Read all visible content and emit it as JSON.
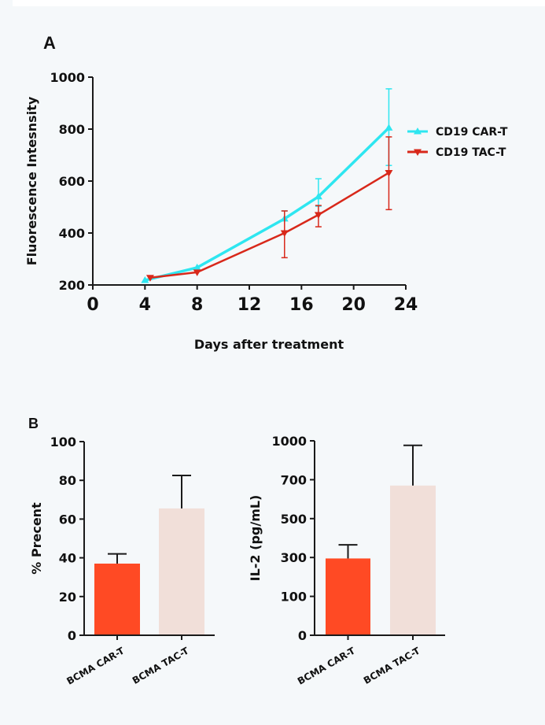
{
  "panels": {
    "a_label": "A",
    "b_label": "B"
  },
  "chart_data": [
    {
      "type": "line",
      "panel": "A",
      "title": "",
      "xlabel": "Days after treatment",
      "ylabel": "Fluorescence Intesnsity",
      "xlim": [
        0,
        24
      ],
      "ylim": [
        200,
        1000
      ],
      "x_ticks": [
        0,
        4,
        8,
        12,
        16,
        20,
        24
      ],
      "y_ticks": [
        200,
        400,
        600,
        800,
        1000
      ],
      "grid": false,
      "legend_position": "right",
      "series": [
        {
          "name": "CD19 CAR-T",
          "color": "#2ee6f0",
          "marker": "triangle-up",
          "x": [
            4,
            8,
            14.7,
            17.3,
            22.7
          ],
          "y": [
            218,
            267,
            455,
            540,
            805
          ],
          "error_low": [
            null,
            null,
            null,
            503,
            660
          ],
          "error_high": [
            null,
            null,
            485,
            609,
            955
          ]
        },
        {
          "name": "CD19 TAC-T",
          "color": "#d8281a",
          "marker": "triangle-down",
          "x": [
            4.4,
            8,
            14.7,
            17.3,
            22.7
          ],
          "y": [
            228,
            249,
            400,
            470,
            632
          ],
          "error_low": [
            null,
            null,
            305,
            424,
            490
          ],
          "error_high": [
            null,
            null,
            485,
            506,
            770
          ]
        }
      ]
    },
    {
      "type": "bar",
      "panel": "B-left",
      "title": "",
      "xlabel": "",
      "ylabel": "% Precent",
      "ylim": [
        0,
        100
      ],
      "y_ticks": [
        0,
        20,
        40,
        60,
        80,
        100
      ],
      "categories": [
        "BCMA CAR-T",
        "BCMA TAC-T"
      ],
      "values": [
        37,
        65.5
      ],
      "error_high": [
        42,
        82.5
      ],
      "colors": [
        "#ff4a24",
        "#f1dfd9"
      ]
    },
    {
      "type": "bar",
      "panel": "B-right",
      "title": "",
      "xlabel": "",
      "ylabel": "IL-2 (pg/mL)",
      "ylim": [
        0,
        1000
      ],
      "y_ticks": [
        0,
        100,
        300,
        500,
        700,
        1000
      ],
      "y_ticks_note": "tick labels evenly spaced (segmented axis)",
      "categories": [
        "BCMA CAR-T",
        "BCMA TAC-T"
      ],
      "values": [
        295,
        670
      ],
      "error_high": [
        365,
        965
      ],
      "colors": [
        "#ff4a24",
        "#f1dfd9"
      ]
    }
  ]
}
